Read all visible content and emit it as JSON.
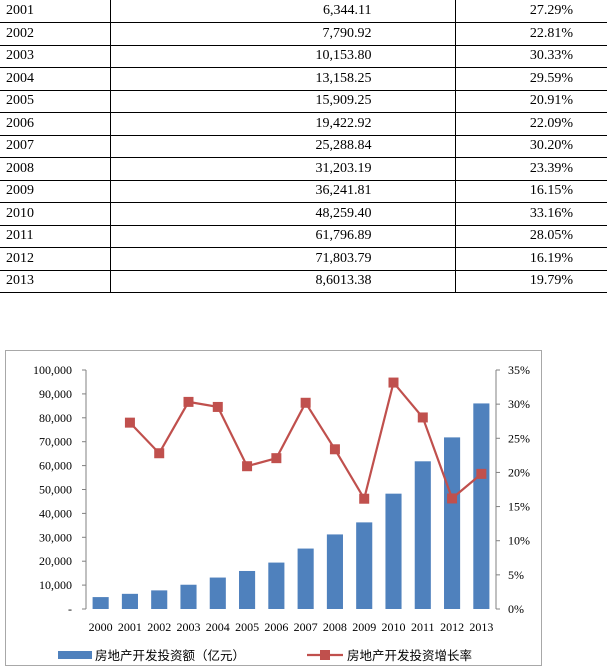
{
  "table": {
    "rows": [
      {
        "year": "2001",
        "investment": "6,344.11",
        "growth": "27.29%"
      },
      {
        "year": "2002",
        "investment": "7,790.92",
        "growth": "22.81%"
      },
      {
        "year": "2003",
        "investment": "10,153.80",
        "growth": "30.33%"
      },
      {
        "year": "2004",
        "investment": "13,158.25",
        "growth": "29.59%"
      },
      {
        "year": "2005",
        "investment": "15,909.25",
        "growth": "20.91%"
      },
      {
        "year": "2006",
        "investment": "19,422.92",
        "growth": "22.09%"
      },
      {
        "year": "2007",
        "investment": "25,288.84",
        "growth": "30.20%"
      },
      {
        "year": "2008",
        "investment": "31,203.19",
        "growth": "23.39%"
      },
      {
        "year": "2009",
        "investment": "36,241.81",
        "growth": "16.15%"
      },
      {
        "year": "2010",
        "investment": "48,259.40",
        "growth": "33.16%"
      },
      {
        "year": "2011",
        "investment": "61,796.89",
        "growth": "28.05%"
      },
      {
        "year": "2012",
        "investment": "71,803.79",
        "growth": "16.19%"
      },
      {
        "year": "2013",
        "investment": "8,6013.38",
        "growth": "19.79%"
      }
    ]
  },
  "chart_data": {
    "type": "bar",
    "categories": [
      "2000",
      "2001",
      "2002",
      "2003",
      "2004",
      "2005",
      "2006",
      "2007",
      "2008",
      "2009",
      "2010",
      "2011",
      "2012",
      "2013"
    ],
    "series": [
      {
        "name": "房地产开发投资额（亿元）",
        "type": "bar",
        "axis": "left",
        "color": "#4f81bd",
        "values": [
          4984,
          6344.11,
          7790.92,
          10153.8,
          13158.25,
          15909.25,
          19422.92,
          25288.84,
          31203.19,
          36241.81,
          48259.4,
          61796.89,
          71803.79,
          86013.38
        ]
      },
      {
        "name": "房地产开发投资增长率",
        "type": "line",
        "axis": "right",
        "color": "#c0504d",
        "marker": "square",
        "values": [
          null,
          27.29,
          22.81,
          30.33,
          29.59,
          20.91,
          22.09,
          30.2,
          23.39,
          16.15,
          33.16,
          28.05,
          16.19,
          19.79
        ]
      }
    ],
    "y_left": {
      "range": [
        0,
        100000
      ],
      "ticks": [
        "-",
        "10,000",
        "20,000",
        "30,000",
        "40,000",
        "50,000",
        "60,000",
        "70,000",
        "80,000",
        "90,000",
        "100,000"
      ]
    },
    "y_right": {
      "range": [
        0,
        35
      ],
      "ticks": [
        "0%",
        "5%",
        "10%",
        "15%",
        "20%",
        "25%",
        "30%",
        "35%"
      ]
    },
    "grid": false,
    "legend": "bottom"
  }
}
